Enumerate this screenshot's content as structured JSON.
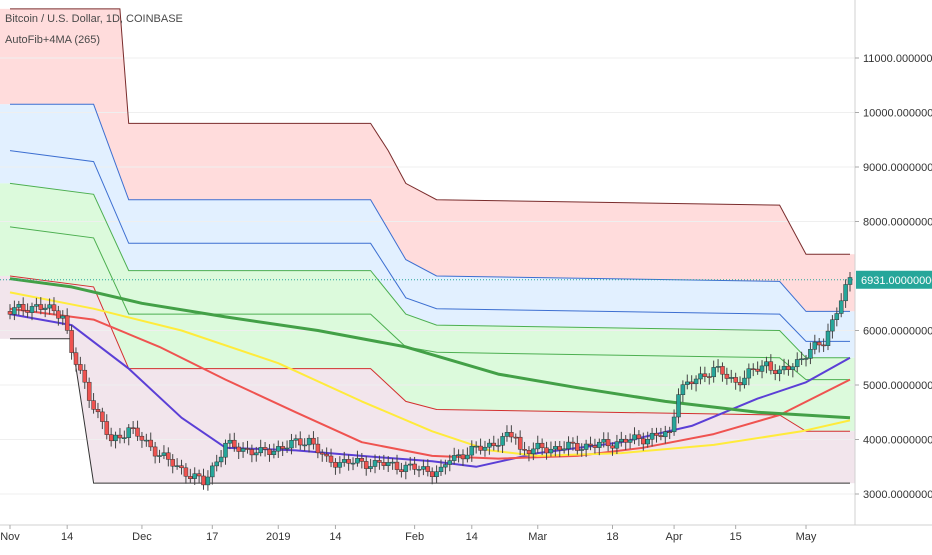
{
  "header": {
    "symbol_title": "Bitcoin / U.S. Dollar, 1D, COINBASE",
    "indicator_title": "AutoFib+4MA (265)"
  },
  "price_label": "6931.00000000",
  "colors": {
    "zone_red": "#ffdcdc",
    "zone_blue": "#e2f0ff",
    "zone_green": "#dcfadc",
    "line_brown": "#7a2c2c",
    "line_blue": "#3d6fd1",
    "line_green": "#4caf50",
    "line_red": "#d32f2f",
    "line_black": "#333333",
    "ma_fast": "#5b3fd6",
    "ma_mid": "#ef5350",
    "ma_slow": "#ffeb3b",
    "ma_long": "#43a047",
    "candle_up": "#26a69a",
    "candle_down": "#ef5350",
    "price_tag": "#26a69a"
  },
  "chart_data": {
    "type": "candlestick",
    "title": "Bitcoin / U.S. Dollar, 1D, COINBASE",
    "xlabel": "",
    "ylabel": "",
    "x_ticks": [
      "Nov",
      "14",
      "Dec",
      "17",
      "2019",
      "14",
      "Feb",
      "14",
      "Mar",
      "18",
      "Apr",
      "15",
      "May"
    ],
    "y_ticks": [
      "11000.00000000",
      "10000.00000000",
      "9000.00000000",
      "8000.00000000",
      "6000.00000000",
      "5000.00000000",
      "4000.00000000",
      "3000.00000000"
    ],
    "y_tick_values": [
      11000,
      10000,
      9000,
      8000,
      6000,
      5000,
      4000,
      3000
    ],
    "ylim": [
      2700,
      12000
    ],
    "last_price": 6931,
    "grid": true,
    "close_series": [
      {
        "date": "2018-11-01",
        "close": 6350
      },
      {
        "date": "2018-11-07",
        "close": 6450
      },
      {
        "date": "2018-11-13",
        "close": 6300
      },
      {
        "date": "2018-11-15",
        "close": 5600
      },
      {
        "date": "2018-11-19",
        "close": 4800
      },
      {
        "date": "2018-11-24",
        "close": 3950
      },
      {
        "date": "2018-11-28",
        "close": 4200
      },
      {
        "date": "2018-12-07",
        "close": 3600
      },
      {
        "date": "2018-12-15",
        "close": 3200
      },
      {
        "date": "2018-12-20",
        "close": 3900
      },
      {
        "date": "2018-12-28",
        "close": 3750
      },
      {
        "date": "2019-01-08",
        "close": 4000
      },
      {
        "date": "2019-01-12",
        "close": 3600
      },
      {
        "date": "2019-01-25",
        "close": 3550
      },
      {
        "date": "2019-02-07",
        "close": 3400
      },
      {
        "date": "2019-02-09",
        "close": 3650
      },
      {
        "date": "2019-02-18",
        "close": 3900
      },
      {
        "date": "2019-02-24",
        "close": 4100
      },
      {
        "date": "2019-02-25",
        "close": 3800
      },
      {
        "date": "2019-03-15",
        "close": 3900
      },
      {
        "date": "2019-03-31",
        "close": 4100
      },
      {
        "date": "2019-04-02",
        "close": 4900
      },
      {
        "date": "2019-04-10",
        "close": 5300
      },
      {
        "date": "2019-04-15",
        "close": 5050
      },
      {
        "date": "2019-04-22",
        "close": 5400
      },
      {
        "date": "2019-04-25",
        "close": 5200
      },
      {
        "date": "2019-05-05",
        "close": 5800
      },
      {
        "date": "2019-05-11",
        "close": 6931
      }
    ],
    "moving_averages": [
      {
        "color_key": "ma_fast",
        "points": [
          {
            "date": "2018-11-01",
            "value": 6300
          },
          {
            "date": "2018-11-15",
            "value": 6100
          },
          {
            "date": "2018-11-28",
            "value": 5300
          },
          {
            "date": "2018-12-10",
            "value": 4400
          },
          {
            "date": "2018-12-20",
            "value": 3850
          },
          {
            "date": "2019-01-05",
            "value": 3800
          },
          {
            "date": "2019-01-20",
            "value": 3700
          },
          {
            "date": "2019-02-05",
            "value": 3600
          },
          {
            "date": "2019-02-15",
            "value": 3500
          },
          {
            "date": "2019-03-01",
            "value": 3750
          },
          {
            "date": "2019-03-20",
            "value": 3950
          },
          {
            "date": "2019-04-05",
            "value": 4250
          },
          {
            "date": "2019-04-20",
            "value": 4750
          },
          {
            "date": "2019-05-01",
            "value": 5050
          },
          {
            "date": "2019-05-11",
            "value": 5500
          }
        ]
      },
      {
        "color_key": "ma_mid",
        "points": [
          {
            "date": "2018-11-01",
            "value": 6400
          },
          {
            "date": "2018-11-20",
            "value": 6200
          },
          {
            "date": "2018-12-05",
            "value": 5700
          },
          {
            "date": "2018-12-20",
            "value": 5100
          },
          {
            "date": "2019-01-05",
            "value": 4500
          },
          {
            "date": "2019-01-20",
            "value": 3950
          },
          {
            "date": "2019-02-05",
            "value": 3700
          },
          {
            "date": "2019-02-20",
            "value": 3650
          },
          {
            "date": "2019-03-10",
            "value": 3700
          },
          {
            "date": "2019-03-25",
            "value": 3850
          },
          {
            "date": "2019-04-10",
            "value": 4100
          },
          {
            "date": "2019-04-25",
            "value": 4450
          },
          {
            "date": "2019-05-11",
            "value": 5100
          }
        ]
      },
      {
        "color_key": "ma_slow",
        "points": [
          {
            "date": "2018-11-01",
            "value": 6700
          },
          {
            "date": "2018-11-20",
            "value": 6400
          },
          {
            "date": "2018-12-10",
            "value": 6000
          },
          {
            "date": "2019-01-01",
            "value": 5400
          },
          {
            "date": "2019-01-20",
            "value": 4700
          },
          {
            "date": "2019-02-05",
            "value": 4150
          },
          {
            "date": "2019-02-18",
            "value": 3800
          },
          {
            "date": "2019-03-01",
            "value": 3700
          },
          {
            "date": "2019-03-20",
            "value": 3750
          },
          {
            "date": "2019-04-10",
            "value": 3900
          },
          {
            "date": "2019-04-30",
            "value": 4150
          },
          {
            "date": "2019-05-11",
            "value": 4350
          }
        ]
      },
      {
        "color_key": "ma_long",
        "points": [
          {
            "date": "2018-11-01",
            "value": 6950
          },
          {
            "date": "2018-11-15",
            "value": 6800
          },
          {
            "date": "2018-12-01",
            "value": 6500
          },
          {
            "date": "2018-12-20",
            "value": 6250
          },
          {
            "date": "2019-01-10",
            "value": 6000
          },
          {
            "date": "2019-01-30",
            "value": 5700
          },
          {
            "date": "2019-02-20",
            "value": 5200
          },
          {
            "date": "2019-03-10",
            "value": 4950
          },
          {
            "date": "2019-03-30",
            "value": 4700
          },
          {
            "date": "2019-04-20",
            "value": 4500
          },
          {
            "date": "2019-05-11",
            "value": 4400
          }
        ]
      }
    ],
    "fib_levels": [
      {
        "color_key": "line_brown",
        "points": [
          {
            "date": "2018-11-01",
            "value": 11900
          },
          {
            "date": "2018-11-26",
            "value": 11900
          },
          {
            "date": "2018-11-28",
            "value": 9800
          },
          {
            "date": "2019-01-22",
            "value": 9800
          },
          {
            "date": "2019-01-26",
            "value": 9300
          },
          {
            "date": "2019-01-30",
            "value": 8700
          },
          {
            "date": "2019-02-06",
            "value": 8400
          },
          {
            "date": "2019-04-25",
            "value": 8300
          },
          {
            "date": "2019-05-01",
            "value": 7400
          },
          {
            "date": "2019-05-11",
            "value": 7400
          }
        ]
      },
      {
        "color_key": "line_blue",
        "points": [
          {
            "date": "2018-11-01",
            "value": 10150
          },
          {
            "date": "2018-11-20",
            "value": 10150
          },
          {
            "date": "2018-11-28",
            "value": 8400
          },
          {
            "date": "2019-01-22",
            "value": 8400
          },
          {
            "date": "2019-01-30",
            "value": 7300
          },
          {
            "date": "2019-02-06",
            "value": 7000
          },
          {
            "date": "2019-04-25",
            "value": 6900
          },
          {
            "date": "2019-05-01",
            "value": 6350
          },
          {
            "date": "2019-05-11",
            "value": 6350
          }
        ]
      },
      {
        "color_key": "line_blue",
        "points": [
          {
            "date": "2018-11-01",
            "value": 9300
          },
          {
            "date": "2018-11-20",
            "value": 9100
          },
          {
            "date": "2018-11-28",
            "value": 7600
          },
          {
            "date": "2019-01-22",
            "value": 7600
          },
          {
            "date": "2019-01-30",
            "value": 6600
          },
          {
            "date": "2019-02-06",
            "value": 6400
          },
          {
            "date": "2019-04-25",
            "value": 6300
          },
          {
            "date": "2019-05-01",
            "value": 5800
          },
          {
            "date": "2019-05-11",
            "value": 5800
          }
        ]
      },
      {
        "color_key": "line_green",
        "points": [
          {
            "date": "2018-11-01",
            "value": 8700
          },
          {
            "date": "2018-11-20",
            "value": 8500
          },
          {
            "date": "2018-11-28",
            "value": 7100
          },
          {
            "date": "2019-01-22",
            "value": 7100
          },
          {
            "date": "2019-01-30",
            "value": 6300
          },
          {
            "date": "2019-02-06",
            "value": 6100
          },
          {
            "date": "2019-04-25",
            "value": 6000
          },
          {
            "date": "2019-05-01",
            "value": 5500
          },
          {
            "date": "2019-05-11",
            "value": 5500
          }
        ]
      },
      {
        "color_key": "line_green",
        "points": [
          {
            "date": "2018-11-01",
            "value": 7900
          },
          {
            "date": "2018-11-20",
            "value": 7700
          },
          {
            "date": "2018-11-28",
            "value": 6300
          },
          {
            "date": "2019-01-22",
            "value": 6300
          },
          {
            "date": "2019-01-30",
            "value": 5700
          },
          {
            "date": "2019-02-06",
            "value": 5600
          },
          {
            "date": "2019-04-25",
            "value": 5500
          },
          {
            "date": "2019-05-01",
            "value": 5100
          },
          {
            "date": "2019-05-11",
            "value": 5100
          }
        ]
      },
      {
        "color_key": "line_red",
        "points": [
          {
            "date": "2018-11-01",
            "value": 7000
          },
          {
            "date": "2018-11-20",
            "value": 6800
          },
          {
            "date": "2018-11-28",
            "value": 5300
          },
          {
            "date": "2019-01-22",
            "value": 5300
          },
          {
            "date": "2019-01-30",
            "value": 4700
          },
          {
            "date": "2019-02-06",
            "value": 4550
          },
          {
            "date": "2019-04-25",
            "value": 4450
          },
          {
            "date": "2019-05-01",
            "value": 4150
          },
          {
            "date": "2019-05-11",
            "value": 4150
          }
        ]
      },
      {
        "color_key": "line_black",
        "points": [
          {
            "date": "2018-11-01",
            "value": 5850
          },
          {
            "date": "2018-11-15",
            "value": 5850
          },
          {
            "date": "2018-11-20",
            "value": 3200
          },
          {
            "date": "2019-05-11",
            "value": 3200
          }
        ]
      }
    ]
  }
}
